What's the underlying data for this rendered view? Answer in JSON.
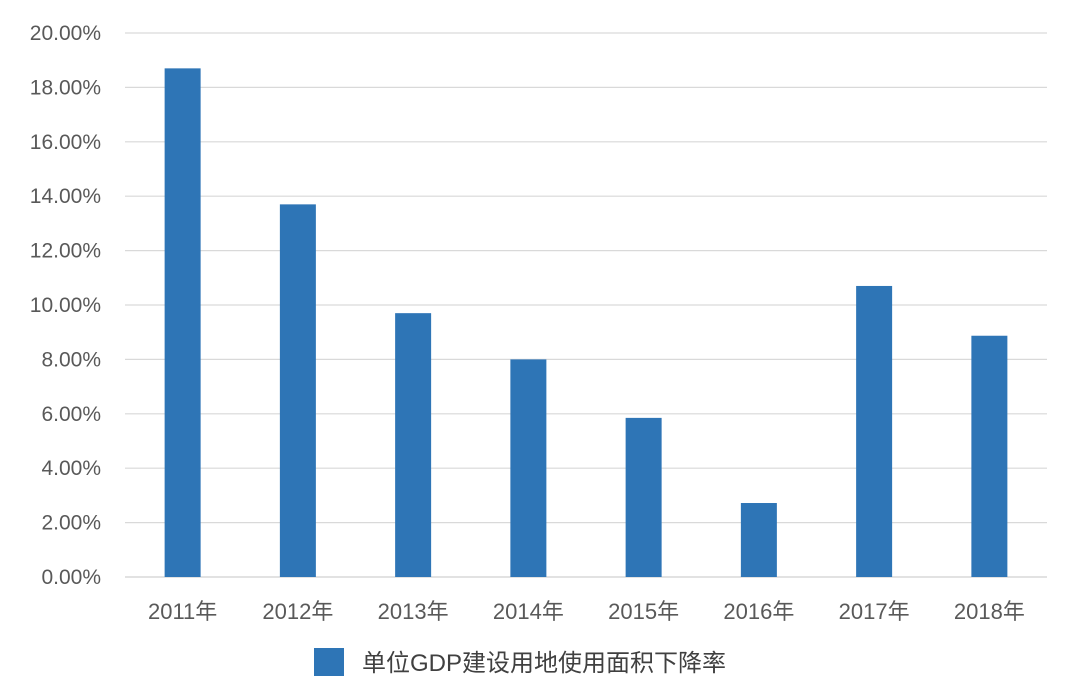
{
  "chart_data": {
    "type": "bar",
    "categories": [
      "2011年",
      "2012年",
      "2013年",
      "2014年",
      "2015年",
      "2016年",
      "2017年",
      "2018年"
    ],
    "series": [
      {
        "name": "单位GDP建设用地使用面积下降率",
        "values": [
          18.7,
          13.7,
          9.7,
          8.0,
          5.85,
          2.72,
          10.7,
          8.87
        ],
        "color": "#2E75B6"
      }
    ],
    "ylim": [
      0,
      20
    ],
    "ytick_step": 2,
    "ytick_labels": [
      "0.00%",
      "2.00%",
      "4.00%",
      "6.00%",
      "8.00%",
      "10.00%",
      "12.00%",
      "14.00%",
      "16.00%",
      "18.00%",
      "20.00%"
    ],
    "grid": true,
    "gridline_color": "#D9D9D9",
    "legend_position": "bottom-center"
  }
}
